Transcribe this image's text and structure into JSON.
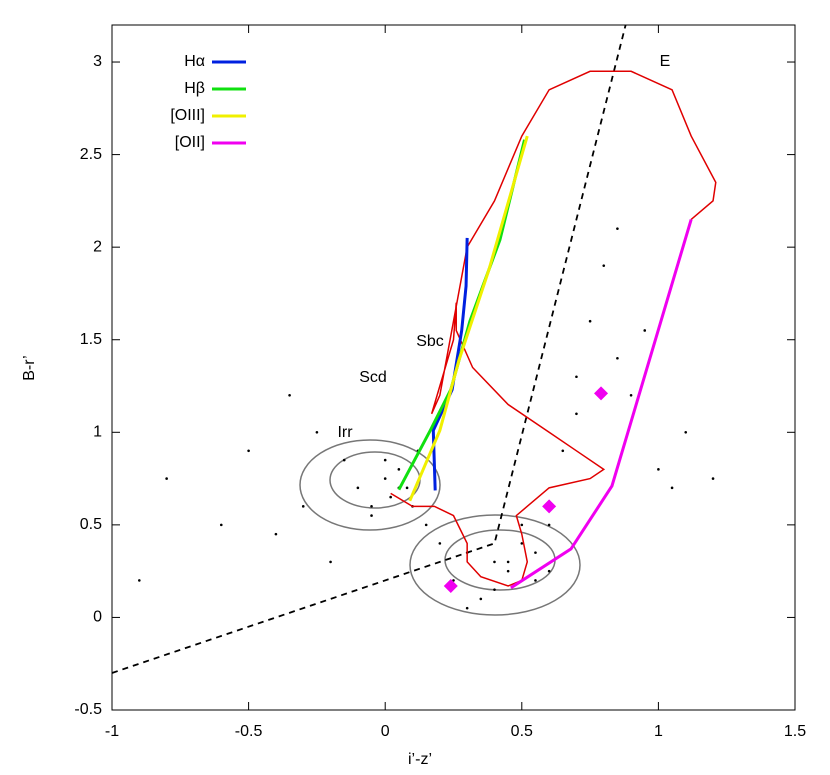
{
  "chart_data": {
    "type": "scatter",
    "x_label": "i’-z’",
    "y_label": "B-r’",
    "xlim": [
      -1,
      1.5
    ],
    "ylim": [
      -0.5,
      3.2
    ],
    "xticks": [
      -1,
      -0.5,
      0,
      0.5,
      1,
      1.5
    ],
    "yticks": [
      -0.5,
      0,
      0.5,
      1,
      1.5,
      2,
      2.5,
      3
    ],
    "legend_position": "upper left",
    "annotations": [
      "E",
      "Sbc",
      "Scd",
      "Irr"
    ],
    "annotation_color": "#e00000",
    "series": [
      {
        "name": "Hα",
        "color": "#0020e0",
        "style": "line",
        "x": [
          0.183,
          0.176,
          0.245,
          0.28,
          0.296,
          0.3
        ],
        "values": [
          0.686,
          1.01,
          1.23,
          1.55,
          1.79,
          2.05
        ]
      },
      {
        "name": "Hβ",
        "color": "#10e010",
        "style": "line",
        "x": [
          0.05,
          0.165,
          0.24,
          0.31,
          0.42,
          0.51
        ],
        "values": [
          0.69,
          1.01,
          1.23,
          1.6,
          2.04,
          2.58
        ]
      },
      {
        "name": "[OIII]",
        "color": "#f0f000",
        "style": "line",
        "x": [
          0.09,
          0.2,
          0.27,
          0.38,
          0.52
        ],
        "values": [
          0.63,
          1.01,
          1.39,
          1.88,
          2.6
        ]
      },
      {
        "name": "[OII]",
        "color": "#f000f0",
        "style": "line",
        "x": [
          0.46,
          0.68,
          0.83,
          1.12
        ],
        "values": [
          0.16,
          0.37,
          0.71,
          2.15
        ]
      },
      {
        "color": "#e00000",
        "style": "thin",
        "x": [
          0.02,
          0.1,
          0.18,
          0.25,
          0.3,
          0.3,
          0.35,
          0.45,
          0.5,
          0.52,
          0.5,
          0.48,
          0.52,
          0.6,
          0.75,
          0.8,
          0.7,
          0.6,
          0.45,
          0.32,
          0.26,
          0.26,
          0.25,
          0.2,
          0.17,
          0.2,
          0.3,
          0.4,
          0.5,
          0.6,
          0.75,
          0.9,
          1.05,
          1.12,
          1.21,
          1.2,
          1.12
        ],
        "values": [
          0.67,
          0.6,
          0.6,
          0.55,
          0.4,
          0.3,
          0.22,
          0.17,
          0.2,
          0.3,
          0.45,
          0.55,
          0.6,
          0.7,
          0.75,
          0.8,
          0.9,
          1.0,
          1.15,
          1.35,
          1.55,
          1.7,
          1.5,
          1.25,
          1.1,
          1.2,
          2.0,
          2.25,
          2.6,
          2.85,
          2.95,
          2.95,
          2.85,
          2.6,
          2.35,
          2.25,
          2.15
        ]
      },
      {
        "color": "#000000",
        "style": "dashed",
        "x": [
          -1,
          0.4,
          0.88
        ],
        "values": [
          -0.3,
          0.4,
          3.2
        ]
      },
      {
        "color": "#000000",
        "style": "points",
        "x": [
          -0.9,
          -0.8,
          -0.6,
          -0.5,
          -0.4,
          -0.35,
          -0.3,
          -0.25,
          -0.2,
          -0.15,
          -0.1,
          -0.05,
          0,
          0.02,
          0.05,
          0.08,
          0.1,
          0.12,
          0.15,
          0.2,
          0.25,
          0.3,
          0.35,
          0.4,
          0.45,
          0.5,
          0.55,
          0.6,
          0.65,
          0.7,
          0.75,
          0.8,
          0.85,
          0.9,
          1.0,
          1.1,
          1.2,
          -0.05,
          0.0,
          0.05,
          0.3,
          0.4,
          0.45,
          0.5,
          0.55,
          0.6,
          0.7,
          0.85,
          0.95,
          1.05
        ],
        "values": [
          0.2,
          0.75,
          0.5,
          0.9,
          0.45,
          1.2,
          0.6,
          1.0,
          0.3,
          0.85,
          0.7,
          0.55,
          0.75,
          0.65,
          0.8,
          0.7,
          0.6,
          0.9,
          0.5,
          0.4,
          0.2,
          0.35,
          0.1,
          0.3,
          0.25,
          0.4,
          0.2,
          0.5,
          0.9,
          1.3,
          1.6,
          1.9,
          1.4,
          1.2,
          0.8,
          1.0,
          0.75,
          0.6,
          0.85,
          0.7,
          0.05,
          0.15,
          0.3,
          0.5,
          0.35,
          0.25,
          1.1,
          2.1,
          1.55,
          0.7
        ]
      },
      {
        "color": "#f000f0",
        "style": "diamond",
        "x": [
          0.24,
          0.6,
          0.79
        ],
        "values": [
          0.17,
          0.6,
          1.21
        ]
      }
    ]
  }
}
